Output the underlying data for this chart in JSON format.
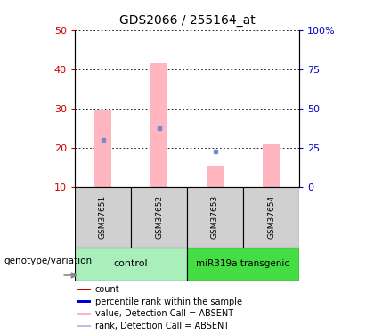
{
  "title": "GDS2066 / 255164_at",
  "samples": [
    "GSM37651",
    "GSM37652",
    "GSM37653",
    "GSM37654"
  ],
  "bar_values": [
    29.5,
    41.5,
    15.5,
    21.0
  ],
  "bar_color": "#ffb6c1",
  "rank_values": [
    22.0,
    25.0,
    19.0,
    null
  ],
  "rank_color": "#7788cc",
  "ylim_left": [
    10,
    50
  ],
  "ylim_right": [
    0,
    100
  ],
  "yticks_left": [
    10,
    20,
    30,
    40,
    50
  ],
  "yticks_right": [
    0,
    25,
    50,
    75,
    100
  ],
  "ytick_labels_right": [
    "0",
    "25",
    "50",
    "75",
    "100%"
  ],
  "left_tick_color": "#cc0000",
  "right_tick_color": "#0000cc",
  "ctrl_color": "#aaeebb",
  "mir_color": "#44dd44",
  "legend_items": [
    {
      "color": "#cc0000",
      "label": "count"
    },
    {
      "color": "#0000cc",
      "label": "percentile rank within the sample"
    },
    {
      "color": "#ffb6c1",
      "label": "value, Detection Call = ABSENT"
    },
    {
      "color": "#b8c0e8",
      "label": "rank, Detection Call = ABSENT"
    }
  ],
  "genotype_label": "genotype/variation",
  "bar_bottom": 10,
  "bar_width": 0.3
}
